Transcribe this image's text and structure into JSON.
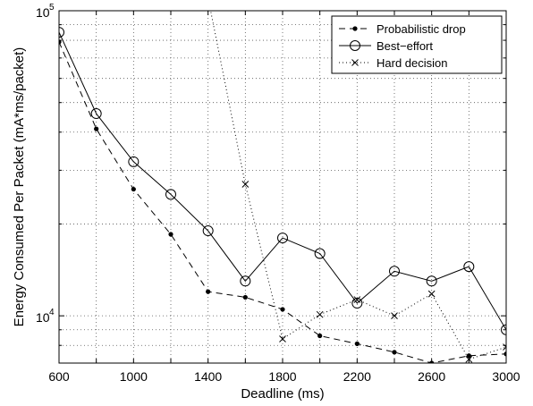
{
  "chart_data": {
    "type": "line",
    "xlabel": "Deadline (ms)",
    "ylabel": "Energy Consumed Per Packet (mA*ms/packet)",
    "xlim": [
      600,
      3000
    ],
    "ylim": [
      7000,
      100000
    ],
    "yscale": "log",
    "x_ticks": [
      600,
      1000,
      1400,
      1800,
      2200,
      2600,
      3000
    ],
    "x_tick_labels": [
      "600",
      "1000",
      "1400",
      "1800",
      "2200",
      "2600",
      "3000"
    ],
    "y_tick_labels": [
      {
        "value": 10000,
        "base": "10",
        "exp": "4"
      },
      {
        "value": 100000,
        "base": "10",
        "exp": "5"
      }
    ],
    "grid": true,
    "legend_position": "top-right",
    "series": [
      {
        "name": "Probabilistic drop",
        "style": "dashed-dot",
        "color": "#000000",
        "x": [
          600,
          800,
          1000,
          1200,
          1400,
          1600,
          1800,
          2000,
          2200,
          2400,
          2600,
          2800,
          3000
        ],
        "y": [
          79000,
          41000,
          26000,
          18500,
          12000,
          11500,
          10500,
          8600,
          8100,
          7600,
          7000,
          7400,
          7500
        ]
      },
      {
        "name": "Best−effort",
        "style": "solid-circle",
        "color": "#000000",
        "x": [
          600,
          800,
          1000,
          1200,
          1400,
          1600,
          1800,
          2000,
          2200,
          2400,
          2600,
          2800,
          3000
        ],
        "y": [
          85000,
          46000,
          32000,
          25000,
          19000,
          13000,
          18000,
          16000,
          11000,
          14000,
          13000,
          14500,
          9000
        ]
      },
      {
        "name": "Hard decision",
        "style": "dotted-x",
        "color": "#000000",
        "x": [
          1400,
          1600,
          1800,
          2000,
          2200,
          2400,
          2600,
          2800,
          3000
        ],
        "y": [
          110000,
          27000,
          8400,
          10100,
          11300,
          10000,
          11800,
          7200,
          7900
        ]
      }
    ]
  }
}
